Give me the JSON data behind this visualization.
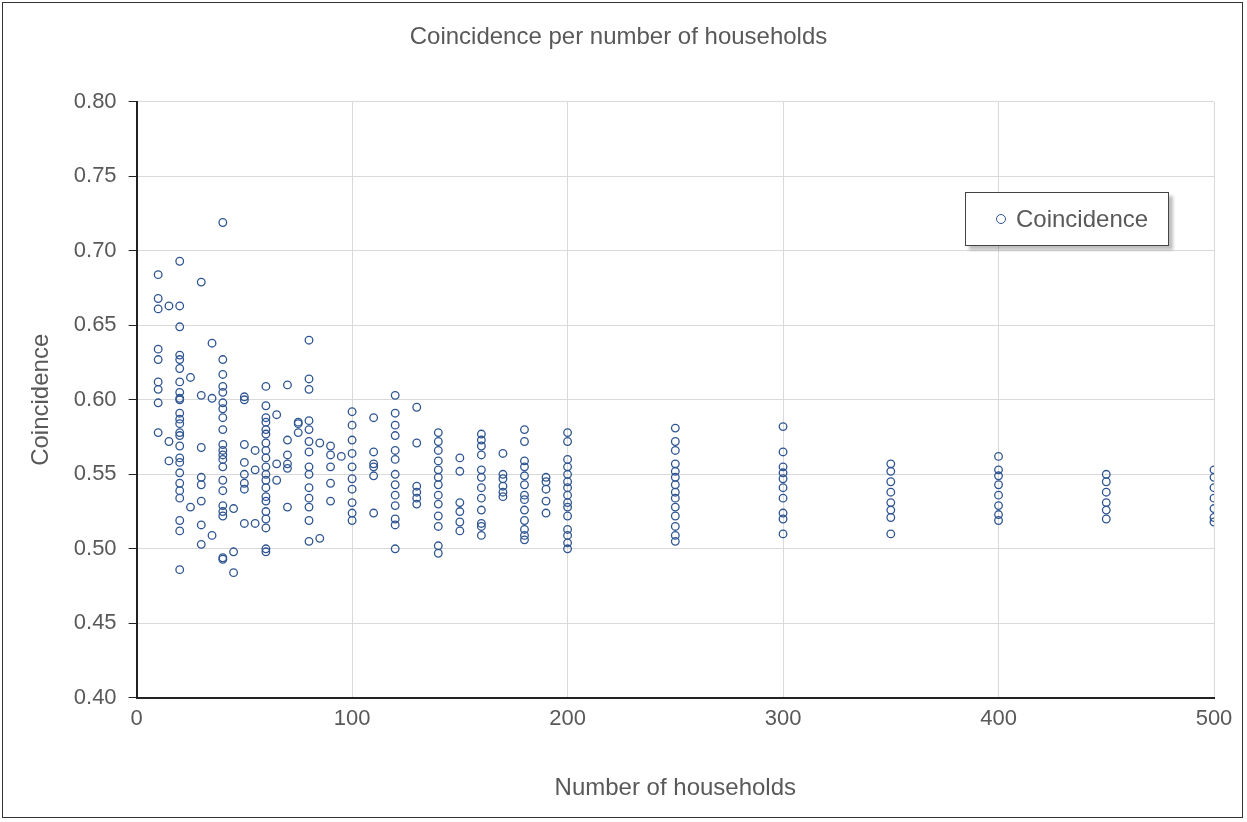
{
  "chart_data": {
    "type": "scatter",
    "title": "Coincidence per number of households",
    "xlabel": "Number of households",
    "ylabel": "Coincidence",
    "xlim": [
      0,
      500
    ],
    "xticks": [
      0,
      100,
      200,
      300,
      400,
      500
    ],
    "ylim": [
      0.4,
      0.8
    ],
    "yticks": [
      {
        "value": 0.4,
        "label": "0.40"
      },
      {
        "value": 0.45,
        "label": "0.45"
      },
      {
        "value": 0.5,
        "label": "0.50"
      },
      {
        "value": 0.55,
        "label": "0.55"
      },
      {
        "value": 0.6,
        "label": "0.60"
      },
      {
        "value": 0.65,
        "label": "0.65"
      },
      {
        "value": 0.7,
        "label": "0.70"
      },
      {
        "value": 0.75,
        "label": "0.75"
      },
      {
        "value": 0.8,
        "label": "0.80"
      }
    ],
    "grid": true,
    "legend": "top right",
    "marker": "circle",
    "series": [
      {
        "name": "Coincidence",
        "color": "#2e5591",
        "x": [
          10,
          10,
          10,
          10,
          10,
          10,
          10,
          10,
          10,
          15,
          15,
          15,
          20,
          20,
          20,
          20,
          20,
          20,
          20,
          20,
          20,
          20,
          20,
          20,
          20,
          20,
          20,
          20,
          20,
          20,
          20,
          20,
          20,
          20,
          20,
          20,
          20,
          25,
          25,
          30,
          30,
          30,
          30,
          30,
          30,
          30,
          30,
          35,
          35,
          35,
          40,
          40,
          40,
          40,
          40,
          40,
          40,
          40,
          40,
          40,
          40,
          40,
          40,
          40,
          40,
          40,
          40,
          40,
          40,
          40,
          40,
          45,
          45,
          45,
          50,
          50,
          50,
          50,
          50,
          50,
          50,
          50,
          55,
          55,
          55,
          60,
          60,
          60,
          60,
          60,
          60,
          60,
          60,
          60,
          60,
          60,
          60,
          60,
          60,
          60,
          60,
          60,
          60,
          60,
          60,
          65,
          65,
          65,
          70,
          70,
          70,
          70,
          70,
          70,
          75,
          75,
          75,
          80,
          80,
          80,
          80,
          80,
          80,
          80,
          80,
          80,
          80,
          80,
          80,
          80,
          80,
          85,
          85,
          90,
          90,
          90,
          90,
          90,
          95,
          100,
          100,
          100,
          100,
          100,
          100,
          100,
          100,
          100,
          100,
          110,
          110,
          110,
          110,
          110,
          110,
          120,
          120,
          120,
          120,
          120,
          120,
          120,
          120,
          120,
          120,
          120,
          120,
          120,
          130,
          130,
          130,
          130,
          130,
          130,
          140,
          140,
          140,
          140,
          140,
          140,
          140,
          140,
          140,
          140,
          140,
          140,
          140,
          150,
          150,
          150,
          150,
          150,
          150,
          160,
          160,
          160,
          160,
          160,
          160,
          160,
          160,
          160,
          160,
          160,
          160,
          170,
          170,
          170,
          170,
          170,
          170,
          180,
          180,
          180,
          180,
          180,
          180,
          180,
          180,
          180,
          180,
          180,
          180,
          180,
          190,
          190,
          190,
          190,
          190,
          200,
          200,
          200,
          200,
          200,
          200,
          200,
          200,
          200,
          200,
          200,
          200,
          200,
          200,
          200,
          250,
          250,
          250,
          250,
          250,
          250,
          250,
          250,
          250,
          250,
          250,
          250,
          250,
          250,
          300,
          300,
          300,
          300,
          300,
          300,
          300,
          300,
          300,
          300,
          350,
          350,
          350,
          350,
          350,
          350,
          350,
          350,
          400,
          400,
          400,
          400,
          400,
          400,
          400,
          400,
          450,
          450,
          450,
          450,
          450,
          450,
          500,
          500,
          500,
          500,
          500,
          500,
          500
        ],
        "values": [
          0.684,
          0.668,
          0.661,
          0.634,
          0.627,
          0.612,
          0.607,
          0.598,
          0.578,
          0.663,
          0.572,
          0.559,
          0.693,
          0.663,
          0.649,
          0.63,
          0.627,
          0.621,
          0.612,
          0.605,
          0.601,
          0.6,
          0.591,
          0.587,
          0.584,
          0.578,
          0.576,
          0.569,
          0.561,
          0.558,
          0.551,
          0.544,
          0.539,
          0.534,
          0.519,
          0.512,
          0.486,
          0.615,
          0.528,
          0.679,
          0.603,
          0.568,
          0.548,
          0.543,
          0.532,
          0.516,
          0.503,
          0.638,
          0.601,
          0.509,
          0.719,
          0.627,
          0.617,
          0.609,
          0.605,
          0.598,
          0.594,
          0.588,
          0.58,
          0.57,
          0.566,
          0.563,
          0.56,
          0.555,
          0.546,
          0.539,
          0.529,
          0.525,
          0.522,
          0.494,
          0.493,
          0.527,
          0.498,
          0.484,
          0.602,
          0.6,
          0.57,
          0.558,
          0.55,
          0.544,
          0.54,
          0.517,
          0.566,
          0.553,
          0.517,
          0.609,
          0.596,
          0.588,
          0.585,
          0.58,
          0.577,
          0.571,
          0.566,
          0.561,
          0.555,
          0.55,
          0.546,
          0.541,
          0.535,
          0.532,
          0.525,
          0.52,
          0.514,
          0.5,
          0.498,
          0.59,
          0.557,
          0.546,
          0.61,
          0.573,
          0.563,
          0.557,
          0.554,
          0.528,
          0.585,
          0.584,
          0.578,
          0.64,
          0.614,
          0.607,
          0.586,
          0.58,
          0.572,
          0.565,
          0.555,
          0.55,
          0.541,
          0.534,
          0.528,
          0.519,
          0.505,
          0.571,
          0.507,
          0.569,
          0.563,
          0.555,
          0.544,
          0.532,
          0.562,
          0.592,
          0.583,
          0.573,
          0.564,
          0.555,
          0.547,
          0.54,
          0.531,
          0.524,
          0.519,
          0.588,
          0.565,
          0.557,
          0.555,
          0.549,
          0.524,
          0.603,
          0.591,
          0.583,
          0.576,
          0.566,
          0.56,
          0.55,
          0.543,
          0.536,
          0.529,
          0.52,
          0.516,
          0.5,
          0.595,
          0.571,
          0.542,
          0.538,
          0.534,
          0.53,
          0.578,
          0.572,
          0.566,
          0.559,
          0.553,
          0.548,
          0.543,
          0.536,
          0.53,
          0.522,
          0.515,
          0.502,
          0.497,
          0.561,
          0.552,
          0.531,
          0.525,
          0.518,
          0.512,
          0.577,
          0.573,
          0.569,
          0.563,
          0.553,
          0.548,
          0.541,
          0.534,
          0.526,
          0.517,
          0.515,
          0.509,
          0.564,
          0.55,
          0.547,
          0.542,
          0.538,
          0.535,
          0.58,
          0.572,
          0.559,
          0.555,
          0.549,
          0.543,
          0.536,
          0.533,
          0.526,
          0.519,
          0.513,
          0.509,
          0.506,
          0.548,
          0.545,
          0.54,
          0.532,
          0.524,
          0.578,
          0.572,
          0.56,
          0.555,
          0.55,
          0.545,
          0.541,
          0.536,
          0.531,
          0.528,
          0.522,
          0.513,
          0.509,
          0.504,
          0.5,
          0.581,
          0.572,
          0.566,
          0.557,
          0.552,
          0.548,
          0.543,
          0.538,
          0.534,
          0.528,
          0.522,
          0.515,
          0.509,
          0.505,
          0.582,
          0.565,
          0.555,
          0.551,
          0.547,
          0.541,
          0.534,
          0.524,
          0.52,
          0.51,
          0.557,
          0.552,
          0.545,
          0.538,
          0.531,
          0.526,
          0.521,
          0.51,
          0.562,
          0.553,
          0.549,
          0.543,
          0.536,
          0.529,
          0.523,
          0.519,
          0.55,
          0.545,
          0.538,
          0.531,
          0.526,
          0.52,
          0.553,
          0.548,
          0.541,
          0.534,
          0.527,
          0.521,
          0.518
        ]
      }
    ]
  }
}
